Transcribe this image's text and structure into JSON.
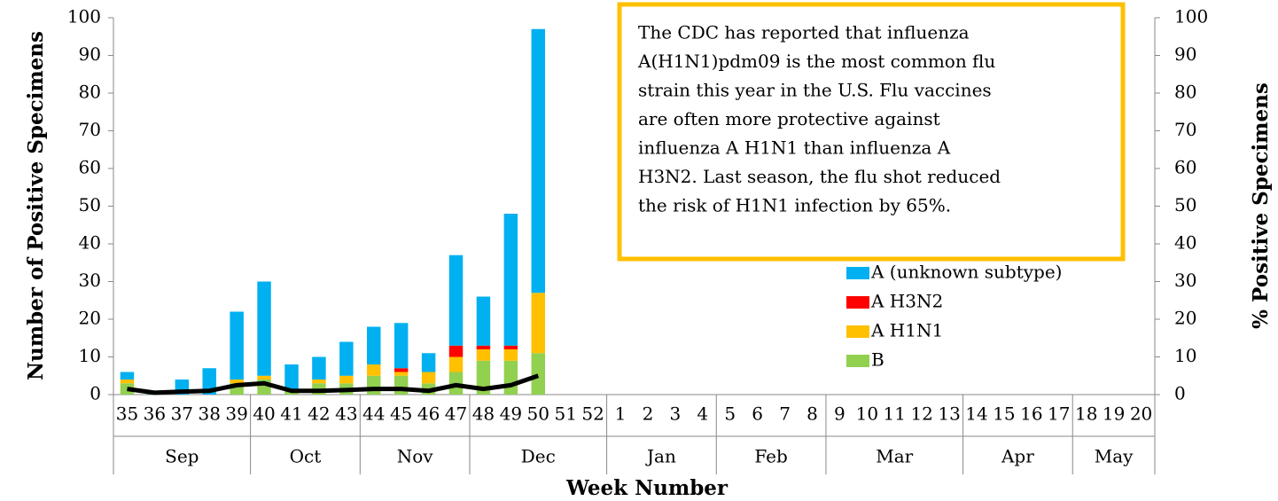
{
  "chart_data": {
    "type": "bar",
    "stacked": true,
    "y_label": "Number of Positive Specimens",
    "y2_label": "% Positive Specimens",
    "x_label": "Week Number",
    "groups": [
      {
        "label": "Sep",
        "categories": [
          "35",
          "36",
          "37",
          "38",
          "39"
        ]
      },
      {
        "label": "Oct",
        "categories": [
          "40",
          "41",
          "42",
          "43"
        ]
      },
      {
        "label": "Nov",
        "categories": [
          "44",
          "45",
          "46",
          "47"
        ]
      },
      {
        "label": "Dec",
        "categories": [
          "48",
          "49",
          "50",
          "51",
          "52"
        ]
      },
      {
        "label": "Jan",
        "categories": [
          "1",
          "2",
          "3",
          "4"
        ]
      },
      {
        "label": "Feb",
        "categories": [
          "5",
          "6",
          "7",
          "8"
        ]
      },
      {
        "label": "Mar",
        "categories": [
          "9",
          "10",
          "11",
          "12",
          "13"
        ]
      },
      {
        "label": "Apr",
        "categories": [
          "14",
          "15",
          "16",
          "17"
        ]
      },
      {
        "label": "May",
        "categories": [
          "18",
          "19",
          "20"
        ]
      }
    ],
    "series": [
      {
        "name": "B",
        "color": "#92d050",
        "values": [
          3,
          0,
          0,
          0,
          3,
          4,
          1,
          3,
          3,
          5,
          5,
          3,
          6,
          9,
          9,
          11,
          null,
          null,
          null,
          null,
          null,
          null,
          null,
          null,
          null,
          null,
          null,
          null,
          null,
          null,
          null,
          null,
          null,
          null,
          null,
          null,
          null,
          null
        ]
      },
      {
        "name": "A H1N1",
        "color": "#ffc000",
        "values": [
          1,
          0,
          0,
          0,
          1,
          1,
          0,
          1,
          2,
          3,
          1,
          3,
          4,
          3,
          3,
          16,
          null,
          null,
          null,
          null,
          null,
          null,
          null,
          null,
          null,
          null,
          null,
          null,
          null,
          null,
          null,
          null,
          null,
          null,
          null,
          null,
          null,
          null
        ]
      },
      {
        "name": "A H3N2",
        "color": "#ff0000",
        "values": [
          0,
          0,
          0,
          0,
          0,
          0,
          0,
          0,
          0,
          0,
          1,
          0,
          3,
          1,
          1,
          0,
          null,
          null,
          null,
          null,
          null,
          null,
          null,
          null,
          null,
          null,
          null,
          null,
          null,
          null,
          null,
          null,
          null,
          null,
          null,
          null,
          null,
          null
        ]
      },
      {
        "name": "A (unknown subtype)",
        "color": "#00b0f0",
        "values": [
          2,
          1,
          4,
          7,
          18,
          25,
          7,
          6,
          9,
          10,
          12,
          5,
          24,
          13,
          35,
          70,
          null,
          null,
          null,
          null,
          null,
          null,
          null,
          null,
          null,
          null,
          null,
          null,
          null,
          null,
          null,
          null,
          null,
          null,
          null,
          null,
          null,
          null
        ]
      },
      {
        "type": "line",
        "axis": "y2",
        "color": "#000000",
        "values": [
          1.5,
          0.5,
          0.8,
          1,
          2.5,
          3,
          1,
          1,
          1.2,
          1.5,
          1.5,
          1,
          2.5,
          1.5,
          2.5,
          5,
          null,
          null,
          null,
          null,
          null,
          null,
          null,
          null,
          null,
          null,
          null,
          null,
          null,
          null,
          null,
          null,
          null,
          null,
          null,
          null,
          null,
          null
        ]
      }
    ],
    "ylim": [
      0,
      100
    ],
    "yticks": [
      0,
      10,
      20,
      30,
      40,
      50,
      60,
      70,
      80,
      90,
      100
    ],
    "y2lim": [
      0,
      100
    ],
    "y2ticks": [
      0,
      10,
      20,
      30,
      40,
      50,
      60,
      70,
      80,
      90,
      100
    ],
    "legend": {
      "position": "right"
    },
    "annotation": {
      "lines": [
        "The CDC has reported that influenza",
        "A(H1N1)pdm09 is the most common flu",
        "strain this year in the U.S. Flu vaccines",
        "are often more protective against",
        "influenza A H1N1 than influenza A",
        "H3N2. Last season, the flu shot reduced",
        "the risk of H1N1 infection by 65%."
      ],
      "border_color": "#ffc000"
    }
  }
}
